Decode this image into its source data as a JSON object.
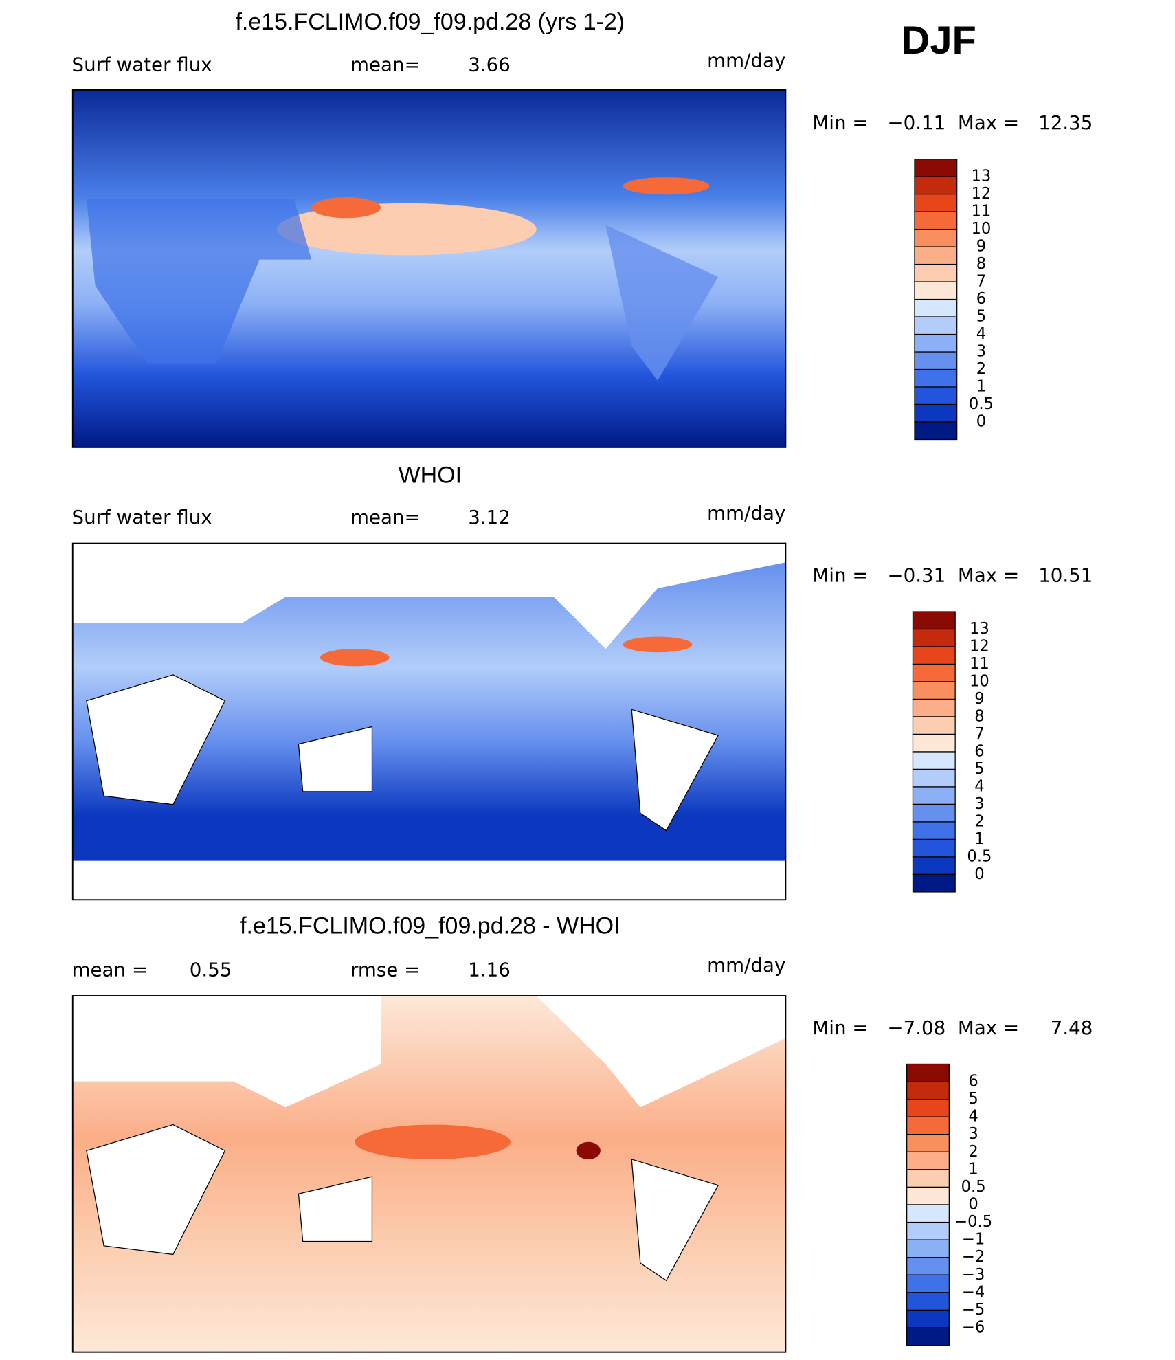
{
  "header": {
    "season": "DJF"
  },
  "panels": [
    {
      "title": "f.e15.FCLIMO.f09_f09.pd.28 (yrs 1-2)",
      "variable": "Surf water flux",
      "stats": [
        {
          "label": "mean=",
          "value": "3.66"
        }
      ],
      "units": "mm/day",
      "min_label": "Min =",
      "min": "−0.11",
      "max_label": "Max =",
      "max": "12.35",
      "colorbar": {
        "labels": [
          "13",
          "12",
          "11",
          "10",
          "9",
          "8",
          "7",
          "6",
          "5",
          "4",
          "3",
          "2",
          "1",
          "0.5",
          "0"
        ],
        "colors": [
          "#8c0a04",
          "#c42a0c",
          "#e8461a",
          "#f56a38",
          "#f98e5e",
          "#fbae88",
          "#fccdb0",
          "#fde8d8",
          "#d6e6fd",
          "#b2cdfa",
          "#8cb0f5",
          "#6690ee",
          "#3f72e8",
          "#2255dc",
          "#0b38bf",
          "#001a85"
        ]
      }
    },
    {
      "title": "WHOI",
      "variable": "Surf water flux",
      "stats": [
        {
          "label": "mean=",
          "value": "3.12"
        }
      ],
      "units": "mm/day",
      "min_label": "Min =",
      "min": "−0.31",
      "max_label": "Max =",
      "max": "10.51",
      "colorbar": {
        "labels": [
          "13",
          "12",
          "11",
          "10",
          "9",
          "8",
          "7",
          "6",
          "5",
          "4",
          "3",
          "2",
          "1",
          "0.5",
          "0"
        ],
        "colors": [
          "#8c0a04",
          "#c42a0c",
          "#e8461a",
          "#f56a38",
          "#f98e5e",
          "#fbae88",
          "#fccdb0",
          "#fde8d8",
          "#d6e6fd",
          "#b2cdfa",
          "#8cb0f5",
          "#6690ee",
          "#3f72e8",
          "#2255dc",
          "#0b38bf",
          "#001a85"
        ]
      }
    },
    {
      "title": "f.e15.FCLIMO.f09_f09.pd.28 - WHOI",
      "stats": [
        {
          "label": "mean =",
          "value": "0.55"
        },
        {
          "label": "rmse =",
          "value": "1.16"
        }
      ],
      "units": "mm/day",
      "min_label": "Min =",
      "min": "−7.08",
      "max_label": "Max =",
      "max": "7.48",
      "colorbar": {
        "labels": [
          "6",
          "5",
          "4",
          "3",
          "2",
          "1",
          "0.5",
          "0",
          "−0.5",
          "−1",
          "−2",
          "−3",
          "−4",
          "−5",
          "−6"
        ],
        "colors": [
          "#8c0a04",
          "#c42a0c",
          "#e8461a",
          "#f56a38",
          "#f98e5e",
          "#fbae88",
          "#fccdb0",
          "#fde8d8",
          "#d6e6fd",
          "#b2cdfa",
          "#8cb0f5",
          "#6690ee",
          "#3f72e8",
          "#2255dc",
          "#0b38bf",
          "#001a85"
        ]
      }
    }
  ]
}
